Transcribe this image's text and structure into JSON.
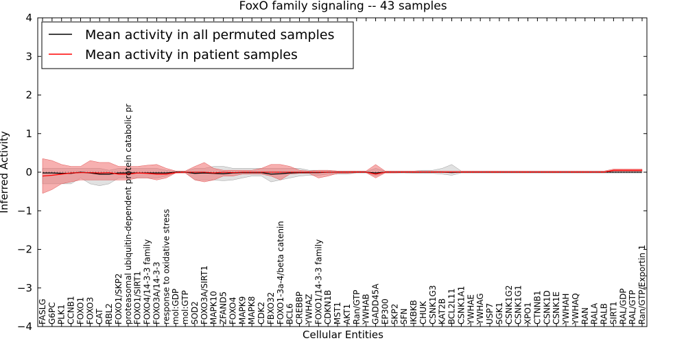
{
  "chart_data": {
    "type": "line",
    "title": "FoxO family signaling -- 43 samples",
    "xlabel": "Cellular Entities",
    "ylabel": "Inferred Activity",
    "ylim": [
      -4,
      4
    ],
    "yticks": [
      -4,
      -3,
      -2,
      -1,
      0,
      1,
      2,
      3,
      4
    ],
    "ytick_labels": [
      "−4",
      "−3",
      "−2",
      "−1",
      "0",
      "1",
      "2",
      "3",
      "4"
    ],
    "grid": false,
    "legend_position": "top-left",
    "categories": [
      "FASLG",
      "G6PC",
      "PLK1",
      "CCNB1",
      "FOXO1",
      "FOXO3",
      "CAT",
      "RBL2",
      "FOXO1/SKP2",
      "proteasomal ubiquitin-dependent protein catabolic pr",
      "FOXO1/SIRT1",
      "FOXO4/14-3-3 family",
      "FOXO3A/14-3-3",
      "response to oxidative stress",
      "mol:GDP",
      "mol:GTP",
      "SOD2",
      "FOXO3A/SIRT1",
      "MAPK10",
      "ZFAND5",
      "FOXO4",
      "MAPK9",
      "MAPK8",
      "CDK2",
      "FBXO32",
      "FOXO1-3a-4/beta catenin",
      "BCL6",
      "CREBBP",
      "YWHAZ",
      "FOXO1/14-3-3 family",
      "CDKN1B",
      "MST1",
      "AKT1",
      "Ran/GTP",
      "YWHAB",
      "GADD45A",
      "EP300",
      "SKP2",
      "SFN",
      "IKBKB",
      "CHUK",
      "CSNK1G3",
      "KAT2B",
      "BCL2L11",
      "CSNK1A1",
      "YWHAE",
      "YWHAG",
      "USP7",
      "SGK1",
      "CSNK1G2",
      "CSNK1G1",
      "XPO1",
      "CTNNB1",
      "CSNK1D",
      "CSNK1E",
      "YWHAH",
      "YWHAQ",
      "RAN",
      "RALA",
      "RALB",
      "SIRT1",
      "RAL/GDP",
      "RAL/GTP",
      "Ran/GTP/Exportin 1"
    ],
    "series": [
      {
        "name": "Mean activity in all permuted samples",
        "color": "#000000",
        "values": [
          -0.02,
          -0.02,
          -0.03,
          -0.03,
          0.0,
          -0.02,
          -0.05,
          -0.05,
          -0.02,
          -0.02,
          -0.02,
          -0.02,
          -0.02,
          -0.02,
          0.0,
          0.0,
          -0.03,
          -0.02,
          -0.03,
          -0.04,
          -0.02,
          -0.01,
          -0.01,
          -0.01,
          -0.05,
          -0.04,
          -0.02,
          -0.01,
          -0.01,
          -0.01,
          0.0,
          0.0,
          0.0,
          0.0,
          0.0,
          -0.02,
          0.0,
          0.0,
          0.0,
          0.0,
          0.0,
          0.0,
          0.0,
          -0.01,
          0.0,
          0.0,
          0.0,
          0.0,
          0.0,
          0.0,
          0.0,
          0.0,
          0.0,
          0.0,
          0.0,
          0.0,
          0.0,
          0.0,
          0.0,
          0.0,
          0.0,
          0.0,
          0.0,
          0.0
        ],
        "band_low": [
          -0.3,
          -0.3,
          -0.3,
          -0.3,
          -0.15,
          -0.3,
          -0.35,
          -0.3,
          -0.15,
          -0.15,
          -0.15,
          -0.15,
          -0.15,
          -0.1,
          -0.02,
          -0.02,
          -0.2,
          -0.2,
          -0.2,
          -0.22,
          -0.2,
          -0.15,
          -0.1,
          -0.1,
          -0.25,
          -0.2,
          -0.15,
          -0.1,
          -0.08,
          -0.08,
          -0.05,
          -0.05,
          -0.05,
          -0.02,
          -0.02,
          -0.1,
          -0.02,
          -0.02,
          -0.02,
          -0.03,
          -0.03,
          -0.03,
          -0.05,
          -0.08,
          -0.02,
          -0.02,
          -0.02,
          -0.02,
          -0.02,
          -0.02,
          -0.02,
          -0.02,
          -0.02,
          -0.02,
          -0.02,
          -0.02,
          -0.02,
          -0.02,
          -0.02,
          -0.02,
          -0.02,
          -0.02,
          -0.02,
          -0.02
        ],
        "band_high": [
          0.1,
          0.1,
          0.1,
          0.1,
          0.1,
          0.1,
          0.1,
          0.05,
          0.1,
          0.1,
          0.1,
          0.1,
          0.1,
          0.05,
          0.02,
          0.02,
          0.1,
          0.1,
          0.15,
          0.15,
          0.1,
          0.1,
          0.1,
          0.1,
          0.1,
          0.1,
          0.1,
          0.1,
          0.05,
          0.05,
          0.05,
          0.03,
          0.03,
          0.02,
          0.02,
          0.1,
          0.03,
          0.03,
          0.03,
          0.03,
          0.05,
          0.05,
          0.1,
          0.2,
          0.03,
          0.03,
          0.03,
          0.03,
          0.03,
          0.03,
          0.03,
          0.03,
          0.03,
          0.03,
          0.03,
          0.03,
          0.03,
          0.03,
          0.03,
          0.03,
          0.03,
          0.03,
          0.03,
          0.03
        ]
      },
      {
        "name": "Mean activity in patient samples",
        "color": "#ff0000",
        "values": [
          -0.1,
          -0.08,
          -0.05,
          -0.02,
          -0.01,
          -0.01,
          -0.02,
          -0.01,
          -0.05,
          -0.05,
          -0.02,
          -0.03,
          -0.05,
          -0.05,
          -0.01,
          0.0,
          0.0,
          0.0,
          -0.02,
          0.0,
          -0.01,
          0.0,
          0.0,
          0.0,
          0.0,
          0.0,
          0.0,
          0.0,
          0.0,
          0.0,
          0.0,
          0.0,
          0.0,
          0.0,
          0.0,
          -0.05,
          0.0,
          0.0,
          0.0,
          0.0,
          0.0,
          0.0,
          0.0,
          0.0,
          0.0,
          0.0,
          0.0,
          0.0,
          0.0,
          0.0,
          0.0,
          0.0,
          0.0,
          0.0,
          0.0,
          0.0,
          0.0,
          0.0,
          0.0,
          0.0,
          0.05,
          0.05,
          0.05,
          0.05
        ],
        "band_low": [
          -0.55,
          -0.45,
          -0.3,
          -0.25,
          -0.2,
          -0.2,
          -0.2,
          -0.2,
          -0.2,
          -0.2,
          -0.15,
          -0.15,
          -0.2,
          -0.15,
          -0.02,
          -0.02,
          -0.2,
          -0.25,
          -0.2,
          -0.1,
          -0.1,
          -0.05,
          -0.05,
          -0.05,
          -0.1,
          -0.2,
          -0.05,
          -0.03,
          -0.03,
          -0.15,
          -0.1,
          -0.03,
          -0.03,
          -0.01,
          -0.01,
          -0.15,
          -0.02,
          -0.02,
          -0.01,
          -0.01,
          -0.01,
          -0.01,
          -0.01,
          -0.01,
          -0.01,
          -0.01,
          -0.01,
          -0.01,
          -0.01,
          -0.01,
          -0.01,
          -0.01,
          -0.01,
          -0.01,
          -0.01,
          -0.01,
          -0.01,
          -0.01,
          -0.01,
          -0.01,
          0.02,
          0.02,
          0.02,
          0.02
        ],
        "band_high": [
          0.35,
          0.3,
          0.2,
          0.15,
          0.15,
          0.3,
          0.25,
          0.25,
          0.15,
          0.15,
          0.15,
          0.18,
          0.2,
          0.1,
          0.03,
          0.03,
          0.15,
          0.25,
          0.1,
          0.05,
          0.05,
          0.05,
          0.05,
          0.1,
          0.2,
          0.2,
          0.15,
          0.05,
          0.03,
          0.05,
          0.05,
          0.03,
          0.03,
          0.03,
          0.03,
          0.2,
          0.03,
          0.03,
          0.03,
          0.03,
          0.03,
          0.03,
          0.03,
          0.03,
          0.03,
          0.03,
          0.03,
          0.03,
          0.03,
          0.03,
          0.03,
          0.03,
          0.03,
          0.03,
          0.03,
          0.03,
          0.03,
          0.03,
          0.03,
          0.03,
          0.08,
          0.08,
          0.08,
          0.08
        ]
      }
    ]
  }
}
